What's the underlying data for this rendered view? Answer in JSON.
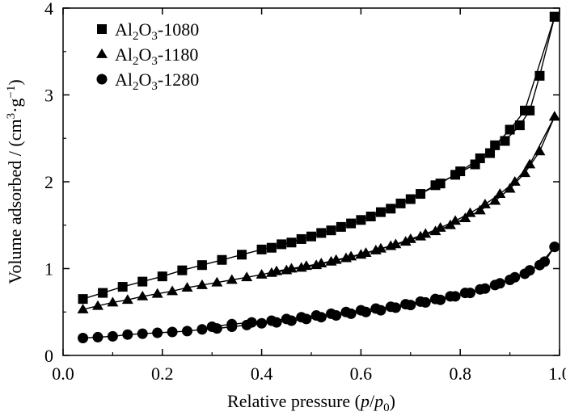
{
  "chart_data": {
    "type": "line",
    "title": "",
    "xlabel": {
      "main": "Relative pressure (",
      "var1": "p",
      "sep": "/",
      "var2": "p",
      "sub": "0",
      "close": ")"
    },
    "ylabel": {
      "main": "Volume adsorbed / (cm",
      "sup": "3",
      "mid": "·g",
      "sup2": "−1",
      "close": ")"
    },
    "xlim": [
      0.0,
      1.0
    ],
    "ylim": [
      0,
      4
    ],
    "xticks": [
      0.0,
      0.2,
      0.4,
      0.6,
      0.8,
      1.0
    ],
    "xtick_labels": [
      "0.0",
      "0.2",
      "0.4",
      "0.6",
      "0.8",
      "1.0"
    ],
    "yticks": [
      0,
      1,
      2,
      3,
      4
    ],
    "ytick_labels": [
      "0",
      "1",
      "2",
      "3",
      "4"
    ],
    "grid": false,
    "legend_position": "top-left",
    "series": [
      {
        "name": {
          "a": "Al",
          "s1": "2",
          "b": "O",
          "s2": "3",
          "c": "-1080"
        },
        "marker": "square",
        "color": "#000000",
        "adsorption": {
          "x": [
            0.04,
            0.08,
            0.12,
            0.16,
            0.2,
            0.24,
            0.28,
            0.32,
            0.36,
            0.4,
            0.44,
            0.48,
            0.52,
            0.56,
            0.6,
            0.64,
            0.68,
            0.72,
            0.76,
            0.8,
            0.84,
            0.87,
            0.9,
            0.93,
            0.99
          ],
          "y": [
            0.65,
            0.72,
            0.79,
            0.85,
            0.91,
            0.98,
            1.04,
            1.1,
            1.16,
            1.22,
            1.28,
            1.34,
            1.41,
            1.48,
            1.56,
            1.65,
            1.75,
            1.86,
            1.98,
            2.12,
            2.27,
            2.42,
            2.6,
            2.82,
            3.9
          ]
        },
        "desorption": {
          "x": [
            0.99,
            0.96,
            0.94,
            0.92,
            0.89,
            0.86,
            0.83,
            0.79,
            0.75,
            0.7,
            0.66,
            0.62,
            0.58,
            0.54,
            0.5,
            0.46,
            0.42
          ],
          "y": [
            3.9,
            3.22,
            2.82,
            2.65,
            2.47,
            2.33,
            2.2,
            2.08,
            1.96,
            1.8,
            1.69,
            1.6,
            1.52,
            1.44,
            1.37,
            1.3,
            1.24
          ]
        }
      },
      {
        "name": {
          "a": "Al",
          "s1": "2",
          "b": "O",
          "s2": "3",
          "c": "-1180"
        },
        "marker": "triangle",
        "color": "#000000",
        "adsorption": {
          "x": [
            0.04,
            0.07,
            0.1,
            0.13,
            0.16,
            0.19,
            0.22,
            0.25,
            0.28,
            0.31,
            0.34,
            0.37,
            0.4,
            0.43,
            0.46,
            0.49,
            0.52,
            0.55,
            0.58,
            0.61,
            0.64,
            0.67,
            0.7,
            0.73,
            0.76,
            0.79,
            0.82,
            0.85,
            0.88,
            0.91,
            0.94,
            0.99
          ],
          "y": [
            0.53,
            0.57,
            0.61,
            0.64,
            0.68,
            0.71,
            0.74,
            0.78,
            0.81,
            0.84,
            0.87,
            0.9,
            0.93,
            0.97,
            1.0,
            1.03,
            1.06,
            1.1,
            1.14,
            1.18,
            1.23,
            1.28,
            1.34,
            1.4,
            1.47,
            1.55,
            1.64,
            1.74,
            1.86,
            2.0,
            2.2,
            2.75
          ]
        },
        "desorption": {
          "x": [
            0.99,
            0.96,
            0.93,
            0.9,
            0.87,
            0.84,
            0.81,
            0.78,
            0.75,
            0.72,
            0.69,
            0.66,
            0.63,
            0.6,
            0.57,
            0.54,
            0.51,
            0.48,
            0.45,
            0.42
          ],
          "y": [
            2.75,
            2.35,
            2.1,
            1.92,
            1.78,
            1.67,
            1.58,
            1.5,
            1.43,
            1.37,
            1.31,
            1.26,
            1.21,
            1.16,
            1.12,
            1.08,
            1.04,
            1.01,
            0.98,
            0.95
          ]
        }
      },
      {
        "name": {
          "a": "Al",
          "s1": "2",
          "b": "O",
          "s2": "3",
          "c": "-1280"
        },
        "marker": "circle",
        "color": "#000000",
        "adsorption": {
          "x": [
            0.04,
            0.07,
            0.1,
            0.13,
            0.16,
            0.19,
            0.22,
            0.25,
            0.28,
            0.31,
            0.34,
            0.37,
            0.4,
            0.43,
            0.46,
            0.49,
            0.52,
            0.55,
            0.58,
            0.61,
            0.64,
            0.67,
            0.7,
            0.73,
            0.76,
            0.79,
            0.82,
            0.85,
            0.88,
            0.91,
            0.94,
            0.97,
            0.99
          ],
          "y": [
            0.2,
            0.21,
            0.22,
            0.24,
            0.25,
            0.26,
            0.27,
            0.28,
            0.3,
            0.31,
            0.33,
            0.35,
            0.37,
            0.38,
            0.4,
            0.42,
            0.44,
            0.46,
            0.48,
            0.5,
            0.52,
            0.55,
            0.58,
            0.61,
            0.64,
            0.68,
            0.72,
            0.77,
            0.83,
            0.9,
            0.98,
            1.08,
            1.25
          ]
        },
        "desorption": {
          "x": [
            0.99,
            0.96,
            0.93,
            0.9,
            0.87,
            0.84,
            0.81,
            0.78,
            0.75,
            0.72,
            0.69,
            0.66,
            0.63,
            0.6,
            0.57,
            0.54,
            0.51,
            0.48,
            0.45,
            0.42,
            0.38,
            0.34,
            0.3
          ],
          "y": [
            1.25,
            1.04,
            0.94,
            0.87,
            0.81,
            0.76,
            0.72,
            0.68,
            0.65,
            0.62,
            0.59,
            0.56,
            0.54,
            0.52,
            0.5,
            0.48,
            0.46,
            0.44,
            0.42,
            0.4,
            0.38,
            0.36,
            0.33
          ]
        }
      }
    ]
  }
}
